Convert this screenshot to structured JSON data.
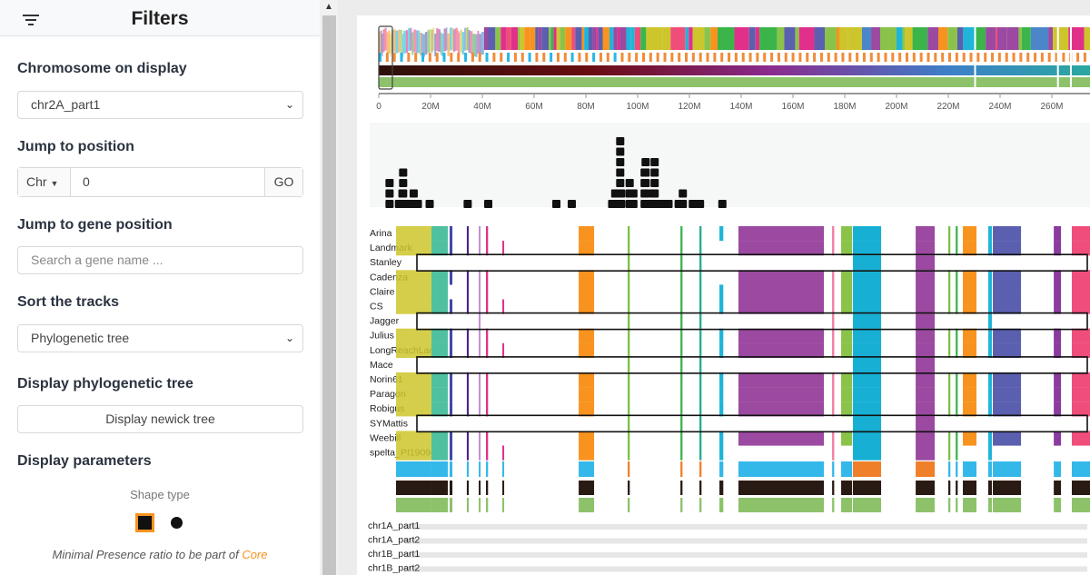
{
  "sidebar": {
    "title": "Filters",
    "chromosome_label": "Chromosome on display",
    "chromosome_value": "chr2A_part1",
    "jump_label": "Jump to position",
    "chr_dropdown": "Chr",
    "position_value": "0",
    "go_label": "GO",
    "gene_label": "Jump to gene position",
    "gene_placeholder": "Search a gene name ...",
    "sort_label": "Sort the tracks",
    "sort_value": "Phylogenetic tree",
    "tree_label": "Display phylogenetic tree",
    "tree_button": "Display newick tree",
    "params_label": "Display parameters",
    "shape_label": "Shape type",
    "shape_selected": "square",
    "presence_text": "Minimal Presence ratio to be part of ",
    "presence_core": "Core"
  },
  "colors": {
    "accent": "#f7931e",
    "core": "#f07f2a",
    "shell": "#34b8ea",
    "count": "#2a1a14",
    "presence": "#8dc26a"
  },
  "chart_data": {
    "type": "presence-absence",
    "axis": {
      "ticks": [
        "0",
        "20M",
        "40M",
        "60M",
        "80M",
        "100M",
        "120M",
        "140M",
        "160M",
        "180M",
        "200M",
        "220M",
        "240M",
        "260M"
      ],
      "tick_values_mb": [
        0,
        20,
        40,
        60,
        80,
        100,
        120,
        140,
        160,
        180,
        200,
        220,
        240,
        260
      ]
    },
    "window_mb": [
      0,
      5
    ],
    "density": {
      "kb": [
        -50,
        18,
        43,
        48,
        94,
        124,
        154,
        239,
        513,
        661,
        1152,
        1263,
        1554,
        1576,
        1600,
        1612,
        1619,
        1680,
        1707,
        1788,
        1795,
        1816,
        1851,
        1860,
        1890,
        1894,
        1930,
        1960,
        2033,
        2063,
        2135,
        2187,
        2348
      ],
      "counts": [
        3,
        1,
        2,
        4,
        1,
        2,
        1,
        1,
        1,
        1,
        1,
        1,
        1,
        2,
        2,
        7,
        2,
        3,
        2,
        4,
        5,
        1,
        2,
        5,
        1,
        1,
        1,
        1,
        1,
        2,
        1,
        1,
        1
      ]
    },
    "genomes": [
      "Arina",
      "Landmark",
      "Stanley",
      "Cadenza",
      "Claire",
      "CS",
      "Jagger",
      "Julius",
      "LongReachLancer",
      "Mace",
      "Norin61",
      "Paragon",
      "Robigus",
      "SYMattis",
      "Weebill",
      "spelta_PI190962"
    ],
    "highlighted": [
      "Stanley",
      "Jagger",
      "Mace",
      "SYMattis"
    ],
    "features": [
      {
        "start": 0,
        "end": 255,
        "color": "#cdc52c",
        "absent": [
          "Stanley",
          "Jagger",
          "Mace",
          "SYMattis"
        ]
      },
      {
        "start": 255,
        "end": 373,
        "color": "#4fc0a0",
        "absent": [
          "Stanley",
          "Jagger",
          "Mace",
          "SYMattis"
        ]
      },
      {
        "start": 386,
        "end": 406,
        "color": "#3b4aa8",
        "absent": [
          "Stanley",
          "Jagger",
          "Mace",
          "SYMattis",
          "Claire"
        ]
      },
      {
        "start": 510,
        "end": 524,
        "color": "#4a2390",
        "absent": [
          "Stanley",
          "Jagger",
          "Mace",
          "SYMattis"
        ]
      },
      {
        "start": 596,
        "end": 604,
        "color": "#c58ad6",
        "absent": [
          "Stanley",
          "Mace",
          "SYMattis"
        ]
      },
      {
        "start": 648,
        "end": 663,
        "color": "#e0308a",
        "absent": [
          "Stanley",
          "Jagger",
          "Mace",
          "SYMattis"
        ]
      },
      {
        "start": 766,
        "end": 779,
        "color": "#e0308a",
        "absent": [
          "Arina",
          "Stanley",
          "Cadenza",
          "Claire",
          "Jagger",
          "Julius",
          "Mace",
          "Norin61",
          "Paragon",
          "Robigus",
          "SYMattis",
          "Weebill"
        ]
      },
      {
        "start": 1316,
        "end": 1427,
        "color": "#f7931e",
        "absent": [
          "Stanley",
          "Jagger",
          "Mace",
          "SYMattis"
        ]
      },
      {
        "start": 1669,
        "end": 1684,
        "color": "#7ac143",
        "absent": []
      },
      {
        "start": 2049,
        "end": 2064,
        "color": "#3bb54a",
        "absent": []
      },
      {
        "start": 2186,
        "end": 2201,
        "color": "#1fb08e",
        "absent": []
      },
      {
        "start": 2330,
        "end": 2358,
        "color": "#1fb5d8",
        "absent": [
          "Landmark",
          "Stanley",
          "Cadenza",
          "Jagger",
          "Mace",
          "SYMattis"
        ]
      },
      {
        "start": 2467,
        "end": 3083,
        "color": "#9b49a1",
        "absent": [
          "Stanley",
          "Jagger",
          "Mace",
          "SYMattis",
          "spelta_PI190962"
        ]
      },
      {
        "start": 3142,
        "end": 3157,
        "color": "#f27aa0",
        "absent": [
          "Stanley",
          "Mace",
          "SYMattis"
        ]
      },
      {
        "start": 3207,
        "end": 3286,
        "color": "#8bc34a",
        "absent": [
          "Stanley",
          "Jagger",
          "Mace",
          "SYMattis",
          "spelta_PI190962"
        ]
      },
      {
        "start": 3292,
        "end": 3495,
        "color": "#17b0d4",
        "absent": []
      },
      {
        "start": 3744,
        "end": 3881,
        "color": "#9b49a1",
        "absent": []
      },
      {
        "start": 3979,
        "end": 3994,
        "color": "#7ac143",
        "absent": [
          "Stanley",
          "Jagger",
          "Mace",
          "SYMattis"
        ]
      },
      {
        "start": 4032,
        "end": 4047,
        "color": "#3bb54a",
        "absent": [
          "Stanley",
          "Jagger",
          "Mace",
          "SYMattis"
        ]
      },
      {
        "start": 4084,
        "end": 4182,
        "color": "#f7931e",
        "absent": [
          "Stanley",
          "Jagger",
          "Mace",
          "SYMattis",
          "spelta_PI190962"
        ]
      },
      {
        "start": 4267,
        "end": 4293,
        "color": "#1fb5d8",
        "absent": [
          "Stanley",
          "Mace",
          "SYMattis"
        ]
      },
      {
        "start": 4300,
        "end": 4503,
        "color": "#5a5fb0",
        "absent": [
          "Stanley",
          "Jagger",
          "Mace",
          "SYMattis",
          "spelta_PI190962"
        ]
      },
      {
        "start": 4739,
        "end": 4791,
        "color": "#8b3aa0",
        "absent": [
          "Stanley",
          "Jagger",
          "Mace",
          "SYMattis",
          "spelta_PI190962"
        ]
      },
      {
        "start": 4869,
        "end": 5000,
        "color": "#ef4e7b",
        "absent": [
          "Stanley",
          "Jagger",
          "Mace",
          "SYMattis",
          "spelta_PI190962"
        ]
      }
    ],
    "other_chromosomes": [
      "chr1A_part1",
      "chr1A_part2",
      "chr1B_part1",
      "chr1B_part2"
    ]
  }
}
